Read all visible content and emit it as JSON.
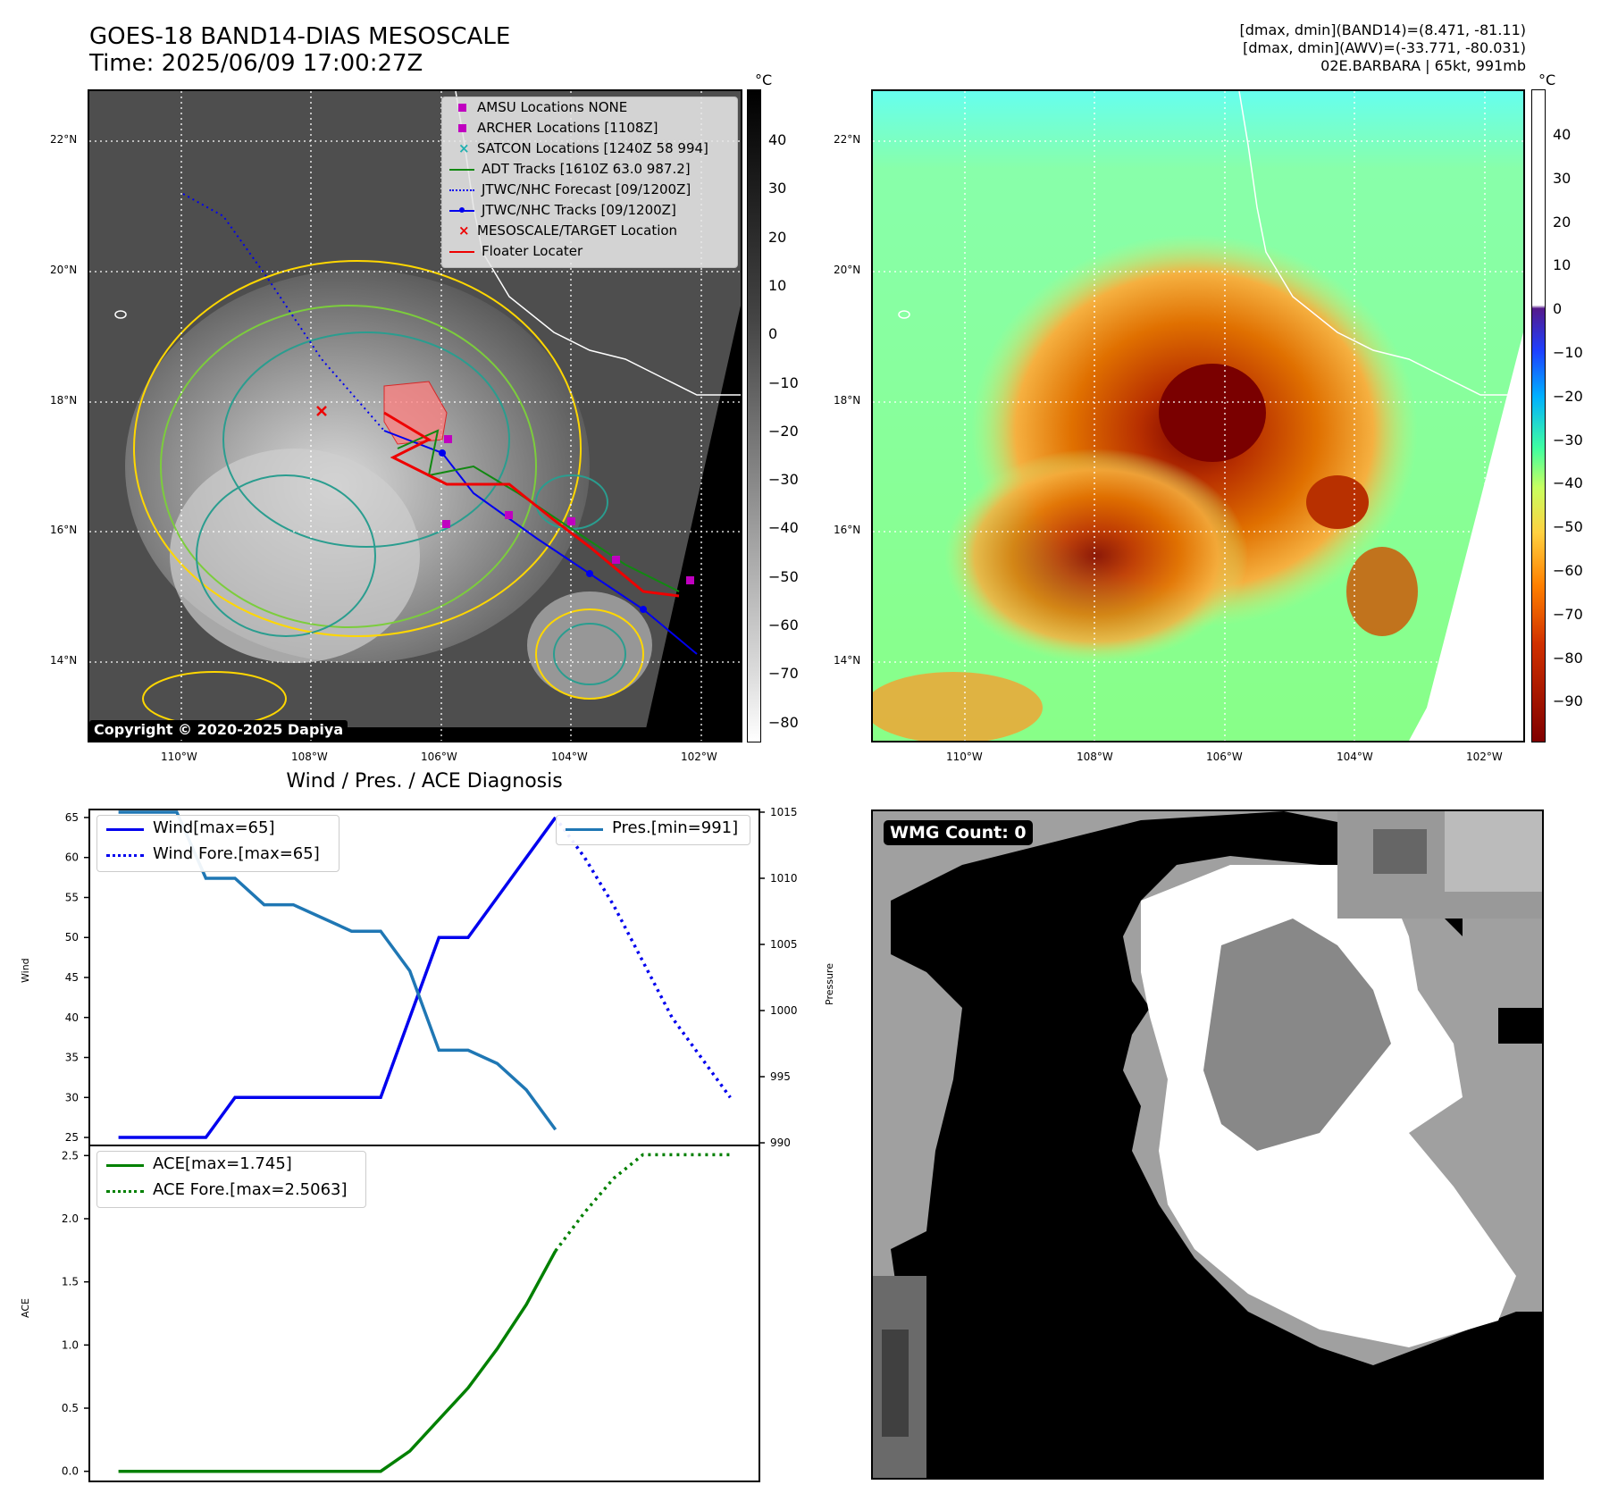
{
  "header": {
    "title_line1": "GOES-18 BAND14-DIAS MESOSCALE",
    "title_line2": "Time: 2025/06/09 17:00:27Z",
    "info_line1": "[dmax, dmin](BAND14)=(8.471, -81.11)",
    "info_line2": "[dmax, dmin](AWV)=(-33.771, -80.031)",
    "info_line3": "02E.BARBARA | 65kt, 991mb"
  },
  "map": {
    "lat_ticks": [
      "22°N",
      "20°N",
      "18°N",
      "16°N",
      "14°N"
    ],
    "lon_ticks": [
      "110°W",
      "108°W",
      "106°W",
      "104°W",
      "102°W"
    ],
    "colorbar_unit": "°C",
    "left_colorbar_ticks": [
      "40",
      "30",
      "20",
      "10",
      "0",
      "−10",
      "−20",
      "−30",
      "−40",
      "−50",
      "−60",
      "−70",
      "−80"
    ],
    "right_colorbar_ticks": [
      "40",
      "30",
      "20",
      "10",
      "0",
      "−10",
      "−20",
      "−30",
      "−40",
      "−50",
      "−60",
      "−70",
      "−80",
      "−90"
    ],
    "copyright": "Copyright © 2020-2025 Dapiya",
    "legend": [
      {
        "label": "AMSU Locations NONE",
        "color": "#c000c0",
        "marker": "square"
      },
      {
        "label": "ARCHER Locations [1108Z]",
        "color": "#c000c0",
        "marker": "square"
      },
      {
        "label": "SATCON Locations [1240Z 58 994]",
        "color": "#20b0b0",
        "marker": "x"
      },
      {
        "label": "ADT Tracks [1610Z 63.0 987.2]",
        "color": "#118811",
        "marker": "line"
      },
      {
        "label": "JTWC/NHC Forecast [09/1200Z]",
        "color": "#0000ee",
        "marker": "dotted"
      },
      {
        "label": "JTWC/NHC Tracks [09/1200Z]",
        "color": "#0000ee",
        "marker": "line-dot"
      },
      {
        "label": "MESOSCALE/TARGET Location",
        "color": "#ee0000",
        "marker": "x"
      },
      {
        "label": "Floater Locater",
        "color": "#ee0000",
        "marker": "line"
      }
    ]
  },
  "wmg": {
    "label": "WMG Count: 0"
  },
  "chart_data": [
    {
      "type": "line",
      "title": "Wind / Pres. / ACE Diagnosis",
      "ylabel": "Wind",
      "y2label": "Pressure",
      "ylim": [
        24,
        66
      ],
      "y2lim": [
        989.8,
        1015.2
      ],
      "xlim": [
        -1,
        22
      ],
      "yticks": [
        25,
        30,
        35,
        40,
        45,
        50,
        55,
        60,
        65
      ],
      "y2ticks": [
        990,
        995,
        1000,
        1005,
        1010,
        1015
      ],
      "series": [
        {
          "name": "Wind[max=65]",
          "color": "#0000ee",
          "style": "solid",
          "x": [
            0,
            1,
            2,
            3,
            4,
            5,
            6,
            7,
            8,
            9,
            10,
            11,
            12,
            13,
            14,
            15
          ],
          "y": [
            25,
            25,
            25,
            25,
            30,
            30,
            30,
            30,
            30,
            30,
            40,
            50,
            50,
            55,
            60,
            65
          ]
        },
        {
          "name": "Wind Fore.[max=65]",
          "color": "#0000ee",
          "style": "dotted",
          "x": [
            15,
            16,
            17,
            18,
            19,
            20,
            21
          ],
          "y": [
            65,
            60,
            54,
            47,
            40,
            35,
            30
          ]
        },
        {
          "name": "Pres.[min=991]",
          "color": "#1f77b4",
          "style": "solid",
          "axis": "right",
          "x": [
            0,
            1,
            2,
            3,
            4,
            5,
            6,
            7,
            8,
            9,
            10,
            11,
            12,
            13,
            14,
            15
          ],
          "y": [
            1015,
            1015,
            1015,
            1010,
            1010,
            1008,
            1008,
            1007,
            1006,
            1006,
            1003,
            997,
            997,
            996,
            994,
            991
          ]
        }
      ]
    },
    {
      "type": "line",
      "ylabel": "ACE",
      "ylim": [
        -0.08,
        2.58
      ],
      "xlim": [
        -1,
        22
      ],
      "yticks": [
        0.0,
        0.5,
        1.0,
        1.5,
        2.0,
        2.5
      ],
      "series": [
        {
          "name": "ACE[max=1.745]",
          "color": "#008000",
          "style": "solid",
          "x": [
            0,
            1,
            2,
            3,
            4,
            5,
            6,
            7,
            8,
            9,
            10,
            11,
            12,
            13,
            14,
            15
          ],
          "y": [
            0,
            0,
            0,
            0,
            0,
            0,
            0,
            0,
            0,
            0,
            0.16,
            0.41,
            0.66,
            0.97,
            1.32,
            1.745
          ]
        },
        {
          "name": "ACE Fore.[max=2.5063]",
          "color": "#008000",
          "style": "dotted",
          "x": [
            15,
            16,
            17,
            18,
            19,
            20,
            21
          ],
          "y": [
            1.745,
            2.05,
            2.32,
            2.5063,
            2.5063,
            2.5063,
            2.5063
          ]
        }
      ]
    }
  ]
}
